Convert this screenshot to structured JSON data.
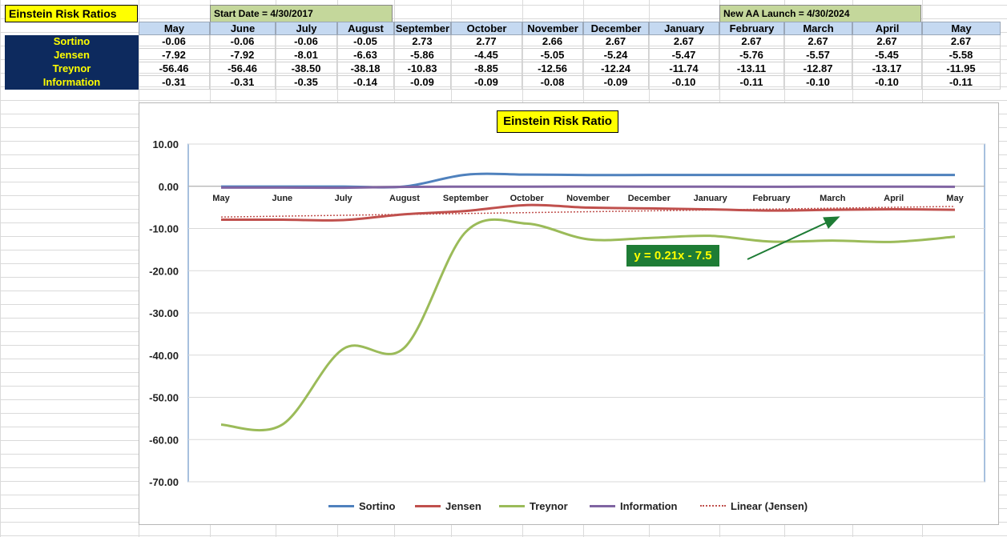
{
  "sheet": {
    "title": "Einstein Risk Ratios",
    "start_date": "Start Date = 4/30/2017",
    "launch": "New AA Launch = 4/30/2024",
    "months": [
      "May",
      "June",
      "July",
      "August",
      "September",
      "October",
      "November",
      "December",
      "January",
      "February",
      "March",
      "April",
      "May"
    ],
    "rows": [
      {
        "label": "Sortino",
        "values": [
          "-0.06",
          "-0.06",
          "-0.06",
          "-0.05",
          "2.73",
          "2.77",
          "2.66",
          "2.67",
          "2.67",
          "2.67",
          "2.67",
          "2.67",
          "2.67"
        ]
      },
      {
        "label": "Jensen",
        "values": [
          "-7.92",
          "-7.92",
          "-8.01",
          "-6.63",
          "-5.86",
          "-4.45",
          "-5.05",
          "-5.24",
          "-5.47",
          "-5.76",
          "-5.57",
          "-5.45",
          "-5.58"
        ]
      },
      {
        "label": "Treynor",
        "values": [
          "-56.46",
          "-56.46",
          "-38.50",
          "-38.18",
          "-10.83",
          "-8.85",
          "-12.56",
          "-12.24",
          "-11.74",
          "-13.11",
          "-12.87",
          "-13.17",
          "-11.95"
        ]
      },
      {
        "label": "Information",
        "values": [
          "-0.31",
          "-0.31",
          "-0.35",
          "-0.14",
          "-0.09",
          "-0.09",
          "-0.08",
          "-0.09",
          "-0.10",
          "-0.11",
          "-0.10",
          "-0.10",
          "-0.11"
        ]
      }
    ]
  },
  "chart_data": {
    "type": "line",
    "title": "Einstein Risk Ratio",
    "categories": [
      "May",
      "June",
      "July",
      "August",
      "September",
      "October",
      "November",
      "December",
      "January",
      "February",
      "March",
      "April",
      "May"
    ],
    "ylim": [
      -70,
      10
    ],
    "yticks": [
      10,
      0,
      -10,
      -20,
      -30,
      -40,
      -50,
      -60,
      -70
    ],
    "ytick_labels": [
      "10.00",
      "0.00",
      "-10.00",
      "-20.00",
      "-30.00",
      "-40.00",
      "-50.00",
      "-60.00",
      "-70.00"
    ],
    "grid": true,
    "legend_position": "bottom",
    "series": [
      {
        "name": "Sortino",
        "color": "#4f81bd",
        "values": [
          -0.06,
          -0.06,
          -0.06,
          -0.05,
          2.73,
          2.77,
          2.66,
          2.67,
          2.67,
          2.67,
          2.67,
          2.67,
          2.67
        ]
      },
      {
        "name": "Jensen",
        "color": "#c0504d",
        "values": [
          -7.92,
          -7.92,
          -8.01,
          -6.63,
          -5.86,
          -4.45,
          -5.05,
          -5.24,
          -5.47,
          -5.76,
          -5.57,
          -5.45,
          -5.58
        ]
      },
      {
        "name": "Treynor",
        "color": "#9bbb59",
        "values": [
          -56.46,
          -56.46,
          -38.5,
          -38.18,
          -10.83,
          -8.85,
          -12.56,
          -12.24,
          -11.74,
          -13.11,
          -12.87,
          -13.17,
          -11.95
        ]
      },
      {
        "name": "Information",
        "color": "#8064a2",
        "values": [
          -0.31,
          -0.31,
          -0.35,
          -0.14,
          -0.09,
          -0.09,
          -0.08,
          -0.09,
          -0.1,
          -0.11,
          -0.1,
          -0.1,
          -0.11
        ]
      }
    ],
    "trendline": {
      "name": "Linear (Jensen)",
      "color": "#c0504d",
      "slope": 0.21,
      "intercept": -7.5,
      "equation": "y = 0.21x - 7.5"
    },
    "annotation_arrow_color": "#1e7c35"
  }
}
